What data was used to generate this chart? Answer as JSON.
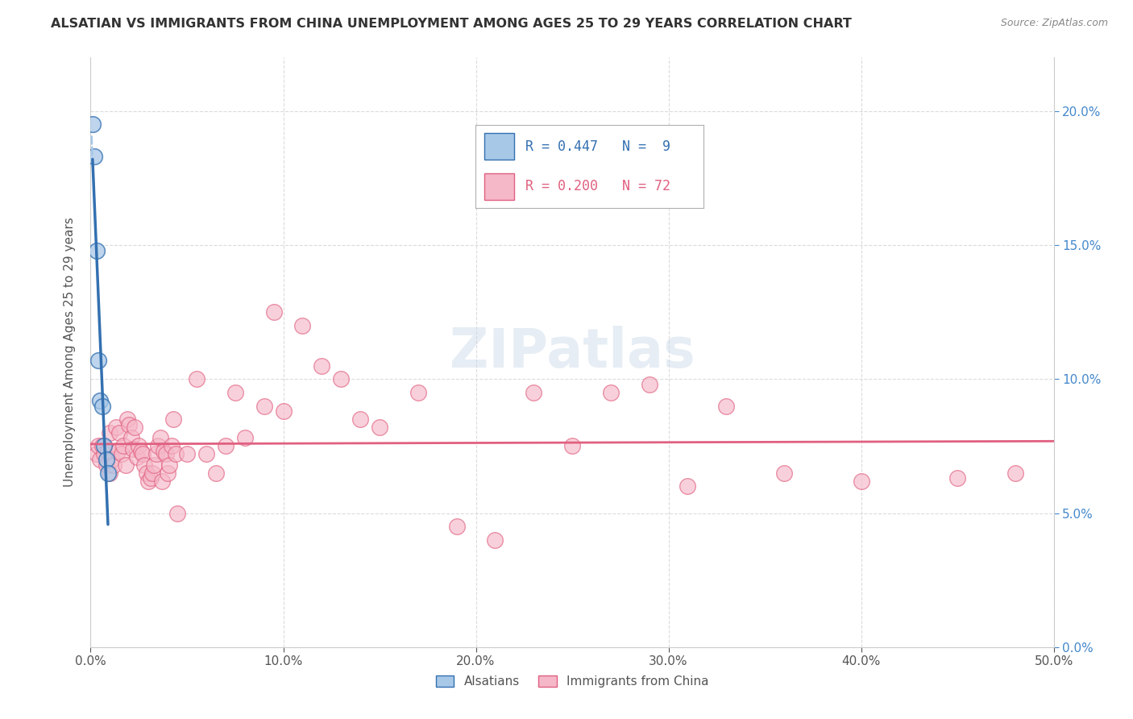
{
  "title": "ALSATIAN VS IMMIGRANTS FROM CHINA UNEMPLOYMENT AMONG AGES 25 TO 29 YEARS CORRELATION CHART",
  "source": "Source: ZipAtlas.com",
  "ylabel": "Unemployment Among Ages 25 to 29 years",
  "legend_label1": "Alsatians",
  "legend_label2": "Immigrants from China",
  "R1": 0.447,
  "N1": 9,
  "R2": 0.2,
  "N2": 72,
  "watermark": "ZIPatlas",
  "alsatian_x": [
    0.001,
    0.002,
    0.003,
    0.004,
    0.005,
    0.006,
    0.007,
    0.008,
    0.009
  ],
  "alsatian_y": [
    0.195,
    0.183,
    0.148,
    0.107,
    0.092,
    0.09,
    0.075,
    0.07,
    0.065
  ],
  "china_x": [
    0.003,
    0.004,
    0.005,
    0.006,
    0.007,
    0.008,
    0.009,
    0.01,
    0.01,
    0.011,
    0.012,
    0.013,
    0.014,
    0.015,
    0.016,
    0.017,
    0.018,
    0.019,
    0.02,
    0.021,
    0.022,
    0.023,
    0.024,
    0.025,
    0.026,
    0.027,
    0.028,
    0.029,
    0.03,
    0.031,
    0.032,
    0.033,
    0.034,
    0.035,
    0.036,
    0.037,
    0.038,
    0.039,
    0.04,
    0.041,
    0.042,
    0.043,
    0.044,
    0.045,
    0.05,
    0.055,
    0.06,
    0.065,
    0.07,
    0.075,
    0.08,
    0.09,
    0.095,
    0.1,
    0.11,
    0.12,
    0.13,
    0.14,
    0.15,
    0.17,
    0.19,
    0.21,
    0.23,
    0.25,
    0.27,
    0.29,
    0.31,
    0.33,
    0.36,
    0.4,
    0.45,
    0.48
  ],
  "china_y": [
    0.072,
    0.075,
    0.07,
    0.075,
    0.072,
    0.068,
    0.073,
    0.065,
    0.08,
    0.07,
    0.068,
    0.082,
    0.073,
    0.08,
    0.072,
    0.075,
    0.068,
    0.085,
    0.083,
    0.078,
    0.074,
    0.082,
    0.071,
    0.075,
    0.073,
    0.072,
    0.068,
    0.065,
    0.062,
    0.063,
    0.065,
    0.068,
    0.072,
    0.075,
    0.078,
    0.062,
    0.073,
    0.072,
    0.065,
    0.068,
    0.075,
    0.085,
    0.072,
    0.05,
    0.072,
    0.1,
    0.072,
    0.065,
    0.075,
    0.095,
    0.078,
    0.09,
    0.125,
    0.088,
    0.12,
    0.105,
    0.1,
    0.085,
    0.082,
    0.095,
    0.045,
    0.04,
    0.095,
    0.075,
    0.095,
    0.098,
    0.06,
    0.09,
    0.065,
    0.062,
    0.063,
    0.065
  ],
  "color_blue": "#a8c8e8",
  "color_pink": "#f5b8c8",
  "line_blue": "#3370b0",
  "line_pink": "#e06080",
  "xmin": 0.0,
  "xmax": 0.5,
  "ymin": 0.0,
  "ymax": 0.22
}
